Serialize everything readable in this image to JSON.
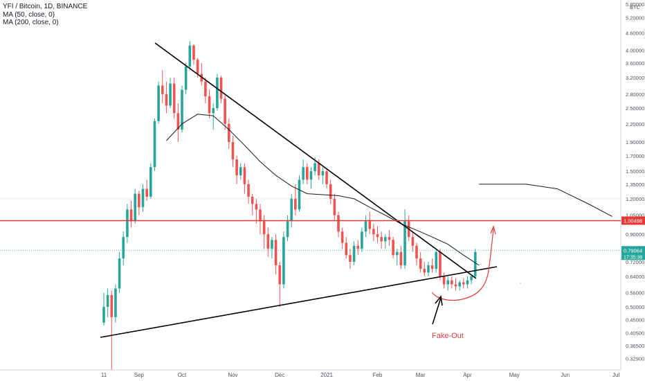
{
  "chart_data": {
    "type": "candlestick",
    "title": "YFI / Bitcoin, 1D, BINANCE",
    "indicators": [
      "MA (50, close, 0)",
      "MA (200, close, 0)"
    ],
    "y_unit": "BTC",
    "y_scale": "log",
    "ylim": [
      0.3,
      6.0
    ],
    "y_ticks": [
      0.329,
      0.365,
      0.405,
      0.45,
      0.5,
      0.56,
      0.64,
      0.72,
      0.8,
      0.9,
      1.05,
      1.2,
      1.35,
      1.5,
      1.7,
      1.9,
      2.2,
      2.5,
      2.8,
      3.2,
      3.6,
      4.0,
      4.6,
      5.2,
      5.8
    ],
    "y_tick_labels": [
      "0.32900",
      "0.36500",
      "0.40500",
      "0.45000",
      "0.50000",
      "0.56000",
      "0.64000",
      "0.72000",
      "0.80000",
      "0.90000",
      "1.05000",
      "1.20000",
      "1.35000",
      "1.50000",
      "1.70000",
      "1.90000",
      "2.20000",
      "2.50000",
      "2.80000",
      "3.20000",
      "3.60000",
      "4.00000",
      "4.60000",
      "5.20000",
      "5.80000"
    ],
    "x_labels": [
      "11",
      "Sep",
      "Oct",
      "Nov",
      "Dec",
      "2021",
      "Feb",
      "Mar",
      "Apr",
      "May",
      "Jun",
      "Jul"
    ],
    "candles": [
      [
        0.44,
        0.56,
        0.43,
        0.5
      ],
      [
        0.5,
        0.58,
        0.46,
        0.55
      ],
      [
        0.55,
        0.57,
        0.3,
        0.46
      ],
      [
        0.46,
        0.6,
        0.44,
        0.58
      ],
      [
        0.58,
        0.78,
        0.56,
        0.74
      ],
      [
        0.74,
        0.92,
        0.7,
        0.88
      ],
      [
        0.88,
        1.15,
        0.84,
        1.1
      ],
      [
        1.1,
        1.18,
        0.95,
        1.0
      ],
      [
        1.0,
        1.3,
        0.98,
        1.25
      ],
      [
        1.25,
        1.28,
        1.05,
        1.12
      ],
      [
        1.12,
        1.35,
        1.08,
        1.3
      ],
      [
        1.3,
        1.4,
        1.18,
        1.22
      ],
      [
        1.22,
        1.6,
        1.2,
        1.55
      ],
      [
        1.55,
        2.3,
        1.5,
        2.25
      ],
      [
        2.25,
        3.1,
        2.2,
        3.0
      ],
      [
        3.0,
        3.4,
        2.6,
        2.8
      ],
      [
        2.8,
        3.1,
        2.4,
        2.55
      ],
      [
        2.55,
        3.2,
        2.5,
        3.05
      ],
      [
        3.05,
        3.2,
        2.3,
        2.4
      ],
      [
        2.4,
        2.6,
        1.9,
        2.1
      ],
      [
        2.1,
        3.0,
        2.05,
        2.9
      ],
      [
        2.9,
        3.6,
        2.8,
        3.5
      ],
      [
        3.5,
        4.3,
        3.4,
        4.15
      ],
      [
        4.15,
        4.2,
        3.55,
        3.7
      ],
      [
        3.7,
        3.75,
        3.2,
        3.3
      ],
      [
        3.3,
        3.6,
        3.0,
        3.1
      ],
      [
        3.1,
        3.2,
        2.6,
        2.75
      ],
      [
        2.75,
        2.9,
        2.3,
        2.4
      ],
      [
        2.4,
        2.6,
        2.1,
        2.5
      ],
      [
        2.5,
        3.3,
        2.45,
        3.2
      ],
      [
        3.2,
        3.25,
        2.6,
        2.7
      ],
      [
        2.7,
        2.8,
        2.1,
        2.2
      ],
      [
        2.2,
        2.3,
        1.8,
        1.9
      ],
      [
        1.9,
        2.0,
        1.55,
        1.65
      ],
      [
        1.65,
        1.7,
        1.35,
        1.45
      ],
      [
        1.45,
        1.6,
        1.4,
        1.55
      ],
      [
        1.55,
        1.6,
        1.25,
        1.35
      ],
      [
        1.35,
        1.4,
        1.15,
        1.22
      ],
      [
        1.22,
        1.25,
        1.05,
        1.15
      ],
      [
        1.15,
        1.2,
        0.98,
        1.1
      ],
      [
        1.1,
        1.15,
        0.9,
        1.0
      ],
      [
        1.0,
        1.05,
        0.8,
        0.9
      ],
      [
        0.9,
        0.95,
        0.75,
        0.8
      ],
      [
        0.8,
        0.88,
        0.74,
        0.86
      ],
      [
        0.86,
        0.9,
        0.65,
        0.7
      ],
      [
        0.7,
        0.72,
        0.5,
        0.6
      ],
      [
        0.6,
        0.92,
        0.58,
        0.88
      ],
      [
        0.88,
        1.05,
        0.85,
        1.0
      ],
      [
        1.0,
        1.25,
        0.95,
        1.2
      ],
      [
        1.2,
        1.35,
        1.05,
        1.1
      ],
      [
        1.1,
        1.45,
        1.08,
        1.4
      ],
      [
        1.4,
        1.65,
        1.35,
        1.55
      ],
      [
        1.55,
        1.6,
        1.35,
        1.4
      ],
      [
        1.4,
        1.55,
        1.3,
        1.5
      ],
      [
        1.5,
        1.68,
        1.45,
        1.6
      ],
      [
        1.6,
        1.65,
        1.4,
        1.45
      ],
      [
        1.45,
        1.55,
        1.35,
        1.5
      ],
      [
        1.5,
        1.52,
        1.3,
        1.35
      ],
      [
        1.35,
        1.4,
        1.15,
        1.2
      ],
      [
        1.2,
        1.25,
        1.0,
        1.05
      ],
      [
        1.05,
        1.08,
        0.88,
        0.92
      ],
      [
        0.92,
        0.95,
        0.8,
        0.84
      ],
      [
        0.84,
        0.88,
        0.74,
        0.76
      ],
      [
        0.76,
        0.8,
        0.68,
        0.72
      ],
      [
        0.72,
        0.85,
        0.7,
        0.82
      ],
      [
        0.82,
        0.86,
        0.76,
        0.8
      ],
      [
        0.8,
        0.95,
        0.78,
        0.92
      ],
      [
        0.92,
        1.05,
        0.88,
        1.0
      ],
      [
        1.0,
        1.08,
        0.9,
        0.94
      ],
      [
        0.94,
        0.98,
        0.85,
        0.9
      ],
      [
        0.9,
        0.96,
        0.84,
        0.88
      ],
      [
        0.88,
        0.92,
        0.8,
        0.85
      ],
      [
        0.85,
        0.9,
        0.8,
        0.88
      ],
      [
        0.88,
        0.93,
        0.82,
        0.86
      ],
      [
        0.86,
        0.88,
        0.74,
        0.76
      ],
      [
        0.76,
        0.8,
        0.7,
        0.78
      ],
      [
        0.78,
        0.82,
        0.68,
        0.7
      ],
      [
        0.7,
        1.1,
        0.68,
        1.0
      ],
      [
        1.0,
        1.05,
        0.85,
        0.88
      ],
      [
        0.88,
        0.92,
        0.78,
        0.82
      ],
      [
        0.82,
        0.84,
        0.7,
        0.74
      ],
      [
        0.74,
        0.78,
        0.66,
        0.68
      ],
      [
        0.68,
        0.72,
        0.64,
        0.66
      ],
      [
        0.66,
        0.72,
        0.64,
        0.7
      ],
      [
        0.7,
        0.74,
        0.66,
        0.68
      ],
      [
        0.68,
        0.8,
        0.66,
        0.78
      ],
      [
        0.78,
        0.8,
        0.62,
        0.64
      ],
      [
        0.64,
        0.66,
        0.58,
        0.6
      ],
      [
        0.6,
        0.64,
        0.57,
        0.62
      ],
      [
        0.62,
        0.64,
        0.58,
        0.6
      ],
      [
        0.6,
        0.63,
        0.57,
        0.59
      ],
      [
        0.59,
        0.62,
        0.57,
        0.61
      ],
      [
        0.61,
        0.63,
        0.58,
        0.6
      ],
      [
        0.6,
        0.64,
        0.58,
        0.62
      ],
      [
        0.62,
        0.65,
        0.6,
        0.64
      ],
      [
        0.64,
        0.8,
        0.63,
        0.78
      ]
    ],
    "ma50": [
      [
        16,
        1.92
      ],
      [
        20,
        2.2
      ],
      [
        24,
        2.38
      ],
      [
        28,
        2.35
      ],
      [
        32,
        2.1
      ],
      [
        36,
        1.85
      ],
      [
        40,
        1.62
      ],
      [
        44,
        1.45
      ],
      [
        48,
        1.33
      ],
      [
        52,
        1.25
      ],
      [
        56,
        1.24
      ],
      [
        60,
        1.23
      ],
      [
        64,
        1.2
      ],
      [
        68,
        1.12
      ],
      [
        72,
        1.05
      ],
      [
        76,
        0.98
      ],
      [
        80,
        0.93
      ],
      [
        84,
        0.88
      ],
      [
        88,
        0.83
      ],
      [
        92,
        0.76
      ],
      [
        96,
        0.7
      ]
    ],
    "ma200": [
      [
        0,
        1.35
      ],
      [
        12,
        1.35
      ],
      [
        20,
        1.3
      ],
      [
        28,
        1.15
      ],
      [
        34,
        1.04
      ]
    ],
    "current_price": {
      "label": "0.79064",
      "value": 0.79064,
      "countdown": "17:35:38"
    },
    "resistance": {
      "label": "1.00498",
      "value": 1.00498
    },
    "annotations": [
      {
        "text": "Fake-Out",
        "color": "#e53935"
      }
    ],
    "colors": {
      "up": "#26a69a",
      "down": "#ef5350",
      "resistance": "#e53935",
      "trend": "#000000",
      "ma": "#131722",
      "price_tag": "#26a69a"
    }
  }
}
